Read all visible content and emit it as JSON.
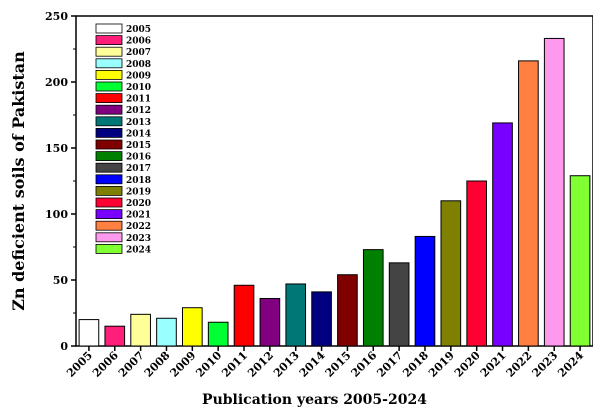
{
  "chart_data": {
    "type": "bar",
    "categories": [
      "2005",
      "2006",
      "2007",
      "2008",
      "2009",
      "2010",
      "2011",
      "2012",
      "2013",
      "2014",
      "2015",
      "2016",
      "2017",
      "2018",
      "2019",
      "2020",
      "2021",
      "2022",
      "2023",
      "2024"
    ],
    "values": [
      20,
      15,
      24,
      21,
      29,
      18,
      46,
      36,
      47,
      41,
      54,
      73,
      63,
      83,
      110,
      125,
      169,
      216,
      233,
      129
    ],
    "colors": [
      "#ffffff",
      "#ff1f7a",
      "#ffff99",
      "#99ffff",
      "#ffff00",
      "#00ff33",
      "#ff0000",
      "#800080",
      "#007777",
      "#000080",
      "#800000",
      "#008000",
      "#444444",
      "#0000ff",
      "#808000",
      "#ff0033",
      "#7700ff",
      "#ff8040",
      "#ff99ee",
      "#80ff33"
    ],
    "title": "",
    "xlabel": "Publication years 2005-2024",
    "ylabel": "Zn deficient soils of Pakistan",
    "ylim": [
      0,
      250
    ],
    "yticks": [
      0,
      50,
      100,
      150,
      200,
      250
    ],
    "legend": {
      "placement": "top-left",
      "entries": [
        "2005",
        "2006",
        "2007",
        "2008",
        "2009",
        "2010",
        "2011",
        "2012",
        "2013",
        "2014",
        "2015",
        "2016",
        "2017",
        "2018",
        "2019",
        "2020",
        "2021",
        "2022",
        "2023",
        "2024"
      ]
    },
    "grid": false
  }
}
